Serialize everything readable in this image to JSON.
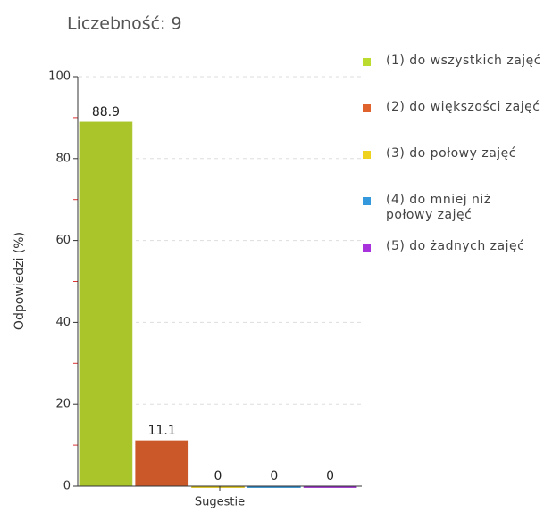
{
  "chart_data": {
    "type": "bar",
    "title": "Liczebność: 9",
    "y_label": "Odpowiedzi (%)",
    "categories": [
      "Sugestie"
    ],
    "series": [
      {
        "name": "(1) do wszystkich zajęć",
        "color": "#bcdb2f",
        "values": [
          88.9
        ]
      },
      {
        "name": "(2) do większości zajęć",
        "color": "#e0622c",
        "values": [
          11.1
        ]
      },
      {
        "name": "(3) do połowy zajęć",
        "color": "#eed21e",
        "values": [
          0
        ]
      },
      {
        "name": "(4) do mniej niż połowy zajęć",
        "color": "#3398dc",
        "values": [
          0
        ]
      },
      {
        "name": "(5) do żadnych zajęć",
        "color": "#a833dc",
        "values": [
          0
        ]
      }
    ],
    "ylim": [
      0,
      100
    ],
    "yticks": [
      0,
      20,
      40,
      60,
      80,
      100
    ],
    "minor_yticks": [
      10,
      30,
      50,
      70,
      90
    ],
    "grid": true,
    "legend": "right"
  }
}
